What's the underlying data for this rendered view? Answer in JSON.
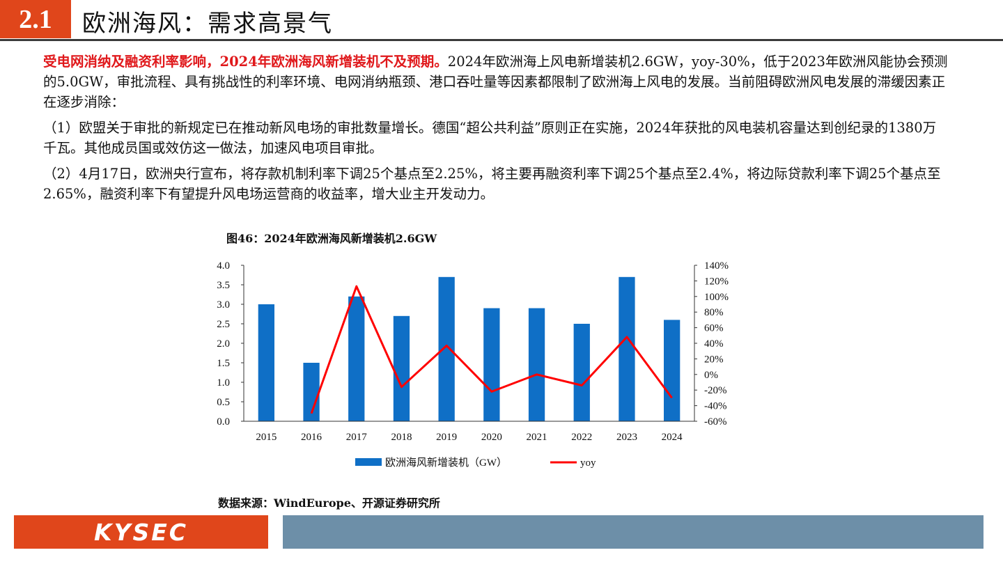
{
  "header": {
    "section_number": "2.1",
    "title": "欧洲海风：需求高景气"
  },
  "body": {
    "p1_highlight": "受电网消纳及融资利率影响，2024年欧洲海风新增装机不及预期。",
    "p1_rest": "2024年欧洲海上风电新增装机2.6GW，yoy-30%，低于2023年欧洲风能协会预测的5.0GW，审批流程、具有挑战性的利率环境、电网消纳瓶颈、港口吞吐量等因素都限制了欧洲海上风电的发展。当前阻碍欧洲风电发展的滞缓因素正在逐步消除：",
    "p2": "（1）欧盟关于审批的新规定已在推动新风电场的审批数量增长。德国“超公共利益”原则正在实施，2024年获批的风电装机容量达到创纪录的1380万千瓦。其他成员国或效仿这一做法，加速风电项目审批。",
    "p3": "（2）4月17日，欧洲央行宣布，将存款机制利率下调25个基点至2.25%，将主要再融资利率下调25个基点至2.4%，将边际贷款利率下调25个基点至2.65%，融资利率下有望提升风电场运营商的收益率，增大业主开发动力。"
  },
  "figure": {
    "title": "图46：2024年欧洲海风新增装机2.6GW",
    "source": "数据来源：WindEurope、开源证券研究所"
  },
  "chart_data": {
    "type": "bar",
    "title": "图46：2024年欧洲海风新增装机2.6GW",
    "categories": [
      "2015",
      "2016",
      "2017",
      "2018",
      "2019",
      "2020",
      "2021",
      "2022",
      "2023",
      "2024"
    ],
    "series": [
      {
        "name": "欧洲海风新增装机（GW）",
        "type": "bar",
        "axis": "left",
        "values": [
          3.0,
          1.5,
          3.2,
          2.7,
          3.7,
          2.9,
          2.9,
          2.5,
          3.7,
          2.6
        ],
        "color": "#0f6fc6"
      },
      {
        "name": "yoy",
        "type": "line",
        "axis": "right",
        "values": [
          null,
          -50,
          113,
          -16,
          37,
          -22,
          0,
          -14,
          48,
          -30
        ],
        "color": "#ff0000"
      }
    ],
    "left_axis": {
      "ylim": [
        0,
        4.0
      ],
      "ticks": [
        "0.0",
        "0.5",
        "1.0",
        "1.5",
        "2.0",
        "2.5",
        "3.0",
        "3.5",
        "4.0"
      ]
    },
    "right_axis": {
      "ylim": [
        -60,
        140
      ],
      "ticks": [
        "-60%",
        "-40%",
        "-20%",
        "0%",
        "20%",
        "40%",
        "60%",
        "80%",
        "100%",
        "120%",
        "140%"
      ]
    },
    "legend": {
      "position": "bottom",
      "items": [
        "欧洲海风新增装机（GW）",
        "yoy"
      ]
    }
  },
  "footer": {
    "logo": "KYSEC",
    "colors": {
      "accent": "#e0461b",
      "bar": "#6d8fa8"
    }
  }
}
